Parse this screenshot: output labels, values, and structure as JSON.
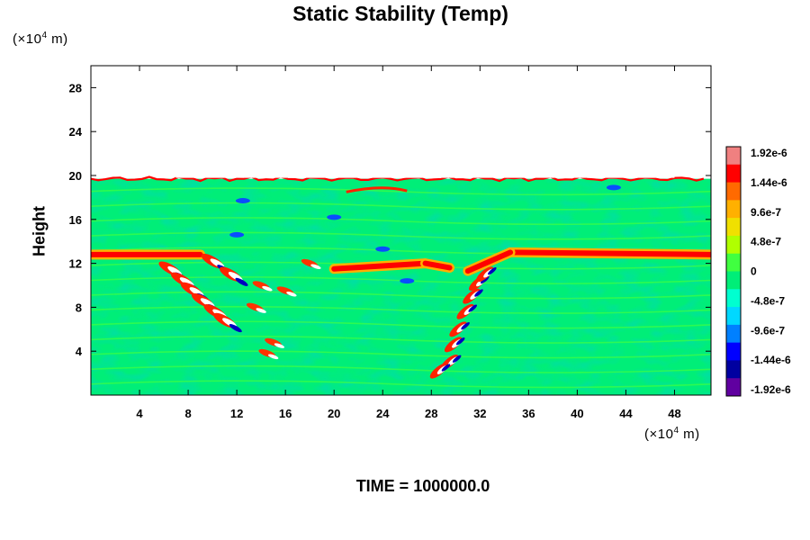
{
  "chart_data": {
    "type": "heatmap",
    "title": "Static Stability (Temp)",
    "ylabel": "Height",
    "xlabel": "",
    "y_unit": {
      "prefix": "(×10",
      "exp": "4",
      "suffix": " m)"
    },
    "x_unit": {
      "prefix": "(×10",
      "exp": "4",
      "suffix": " m)"
    },
    "xlim": [
      0,
      51
    ],
    "ylim": [
      0,
      30
    ],
    "x_ticks": [
      4,
      8,
      12,
      16,
      20,
      24,
      28,
      32,
      36,
      40,
      44,
      48
    ],
    "y_ticks": [
      4,
      8,
      12,
      16,
      20,
      24,
      28
    ],
    "colorbar": {
      "range": [
        -1.92e-06,
        1.92e-06
      ],
      "labels": [
        "1.92e-6",
        "1.44e-6",
        "9.6e-7",
        "4.8e-7",
        "0",
        "-4.8e-7",
        "-9.6e-7",
        "-1.44e-6",
        "-1.92e-6"
      ],
      "colors": [
        "#f08080",
        "#ff0000",
        "#ff6a00",
        "#ffb000",
        "#f0e000",
        "#b0ff00",
        "#40ff40",
        "#00ee78",
        "#00ffd0",
        "#00d8ff",
        "#0080ff",
        "#0000ff",
        "#0000a0",
        "#6000a0"
      ]
    },
    "field_summary": {
      "data_top_height": 19.7,
      "background_value": -2e-07,
      "stable_layer_height": 12.8,
      "stable_layer_value": 1.5e-06,
      "features": [
        {
          "label": "left slanted wave",
          "x_range": [
            6,
            12
          ],
          "height_range": [
            6,
            13
          ],
          "sign": "mixed"
        },
        {
          "label": "right slanted wave",
          "x_range": [
            28,
            32
          ],
          "height_range": [
            2,
            13
          ],
          "sign": "mixed"
        },
        {
          "label": "upper sheet",
          "x_center": 27,
          "height": 12,
          "value": 1.4e-06
        }
      ]
    }
  },
  "footer": {
    "time_label": "TIME = ",
    "time_value": "1000000.0"
  }
}
